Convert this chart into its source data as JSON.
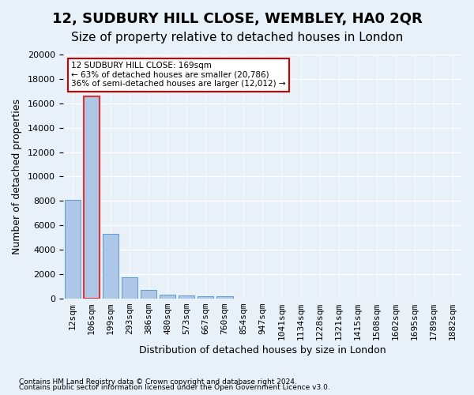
{
  "title": "12, SUDBURY HILL CLOSE, WEMBLEY, HA0 2QR",
  "subtitle": "Size of property relative to detached houses in London",
  "xlabel": "Distribution of detached houses by size in London",
  "ylabel": "Number of detached properties",
  "bin_labels": [
    "12sqm",
    "106sqm",
    "199sqm",
    "293sqm",
    "386sqm",
    "480sqm",
    "573sqm",
    "667sqm",
    "760sqm",
    "854sqm",
    "947sqm",
    "1041sqm",
    "1134sqm",
    "1228sqm",
    "1321sqm",
    "1415sqm",
    "1508sqm",
    "1602sqm",
    "1695sqm",
    "1789sqm",
    "1882sqm"
  ],
  "bar_values": [
    8100,
    16600,
    5300,
    1750,
    700,
    350,
    270,
    200,
    200,
    0,
    0,
    0,
    0,
    0,
    0,
    0,
    0,
    0,
    0,
    0,
    0
  ],
  "bar_color": "#aec6e8",
  "bar_edge_color": "#5b9bd5",
  "highlight_bar_index": 1,
  "highlight_edge_color": "#e53333",
  "ylim": [
    0,
    20000
  ],
  "yticks": [
    0,
    2000,
    4000,
    6000,
    8000,
    10000,
    12000,
    14000,
    16000,
    18000,
    20000
  ],
  "annotation_text": "12 SUDBURY HILL CLOSE: 169sqm\n← 63% of detached houses are smaller (20,786)\n36% of semi-detached houses are larger (12,012) →",
  "annotation_box_color": "#ffffff",
  "annotation_box_edge": "#cc0000",
  "footnote1": "Contains HM Land Registry data © Crown copyright and database right 2024.",
  "footnote2": "Contains public sector information licensed under the Open Government Licence v3.0.",
  "background_color": "#e8f0f8",
  "plot_bg_color": "#e8f0f8",
  "grid_color": "#ffffff",
  "title_fontsize": 13,
  "subtitle_fontsize": 11,
  "axis_label_fontsize": 9,
  "tick_fontsize": 8
}
